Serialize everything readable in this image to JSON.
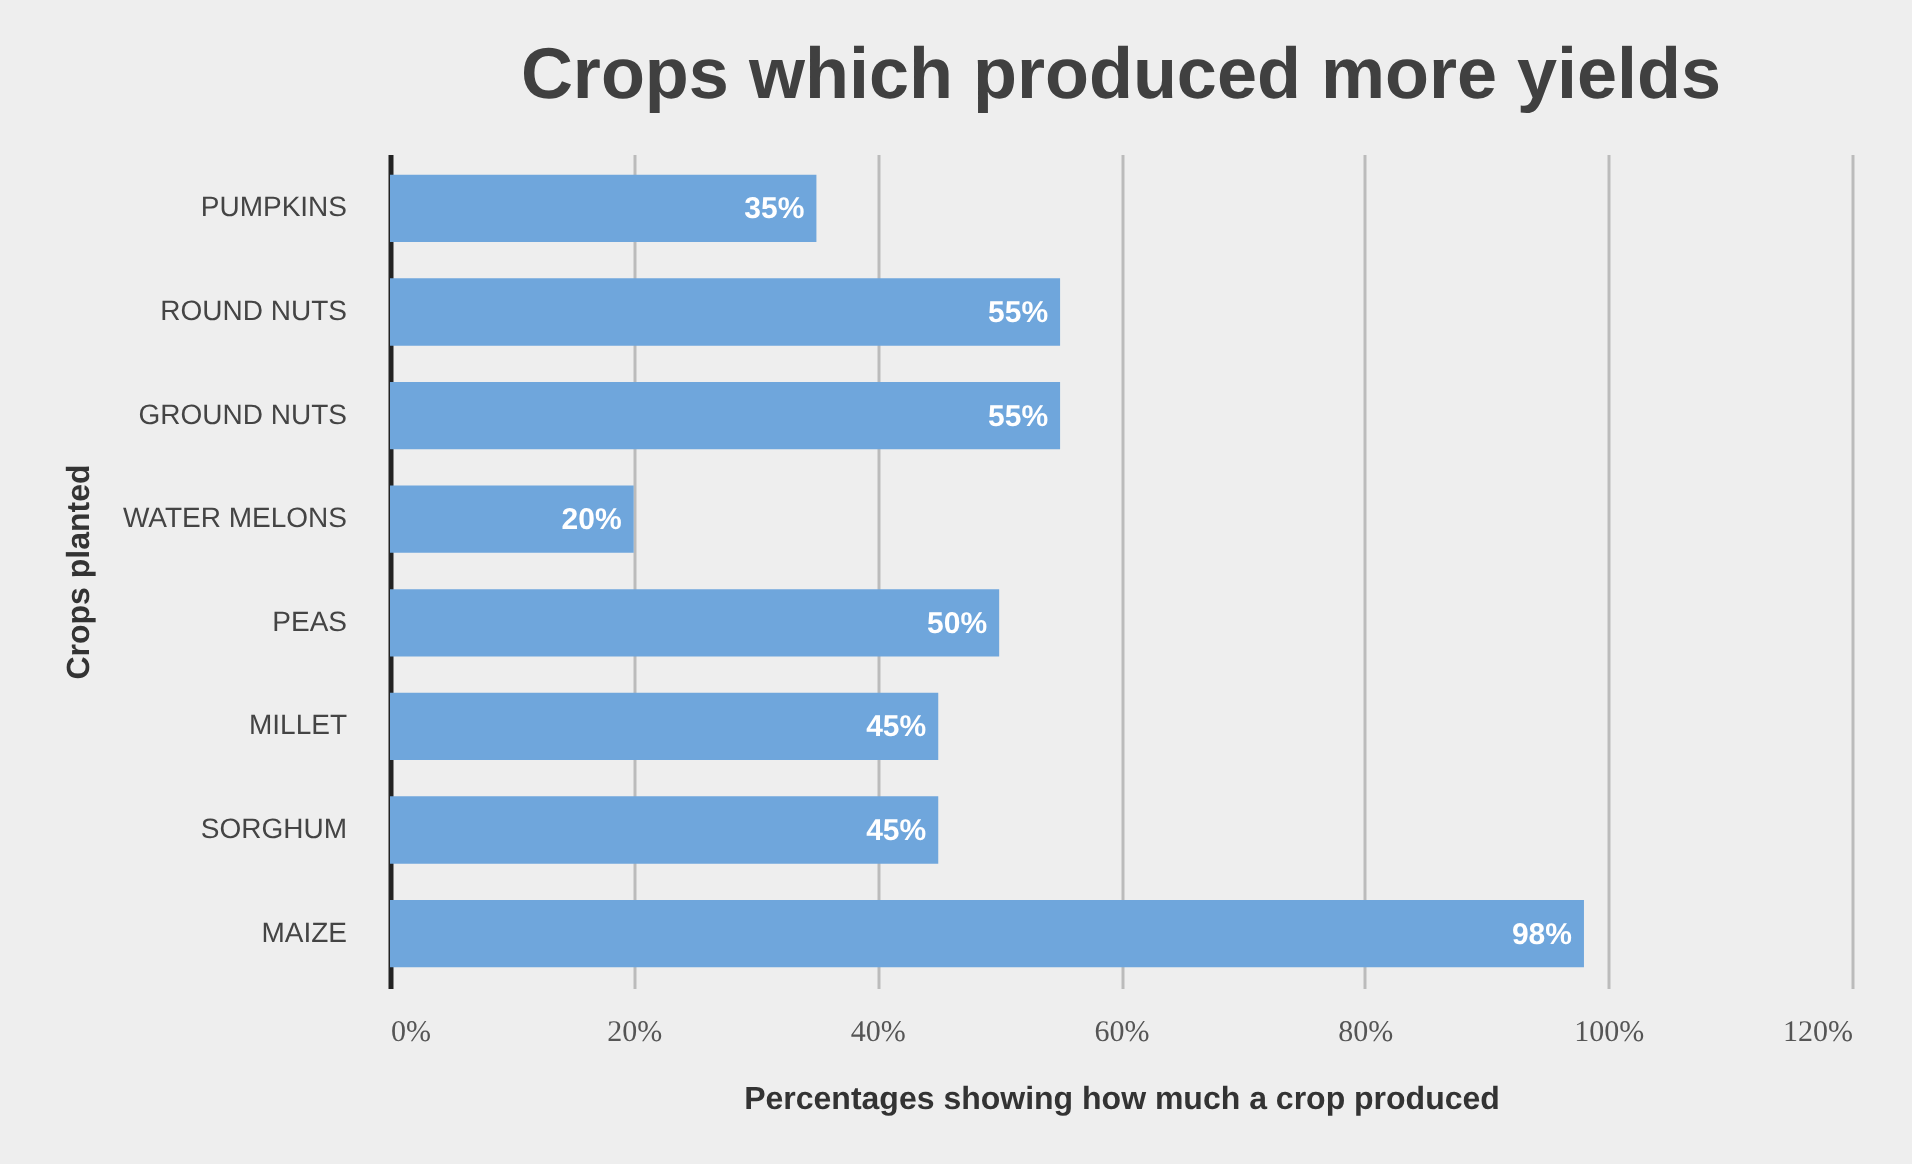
{
  "chart_data": {
    "type": "bar",
    "orientation": "horizontal",
    "title": "Crops which produced more yields",
    "xlabel": "Percentages showing how much a crop produced",
    "ylabel": "Crops planted",
    "categories": [
      "PUMPKINS",
      "ROUND NUTS",
      "GROUND NUTS",
      "WATER MELONS",
      "PEAS",
      "MILLET",
      "SORGHUM",
      "MAIZE"
    ],
    "values": [
      35,
      55,
      55,
      20,
      50,
      45,
      45,
      98
    ],
    "value_labels": [
      "35%",
      "55%",
      "55%",
      "20%",
      "50%",
      "45%",
      "45%",
      "98%"
    ],
    "color": "#6fa6dc",
    "xlim": [
      0,
      120
    ],
    "xticks": [
      {
        "value": 0,
        "label": "0%"
      },
      {
        "value": 20,
        "label": "20%"
      },
      {
        "value": 40,
        "label": "40%"
      },
      {
        "value": 60,
        "label": "60%"
      },
      {
        "value": 80,
        "label": "80%"
      },
      {
        "value": 100,
        "label": "100%"
      },
      {
        "value": 120,
        "label": "120%"
      }
    ],
    "grid": "x"
  }
}
